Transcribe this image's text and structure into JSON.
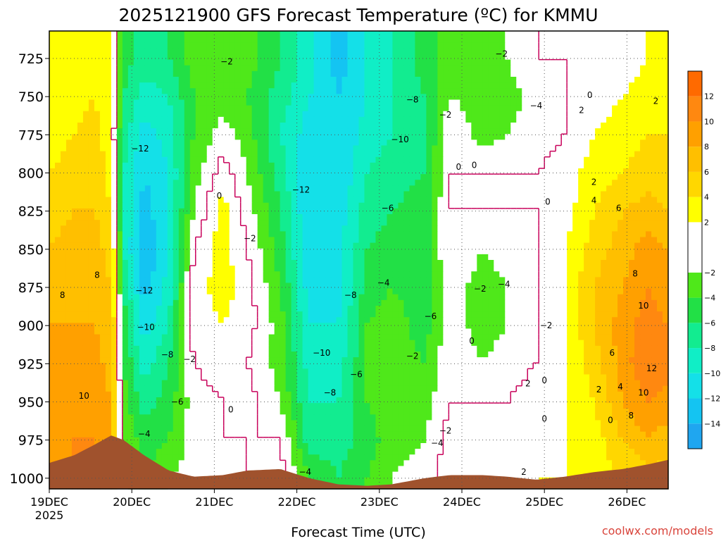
{
  "chart_data": {
    "type": "heatmap",
    "title": "2025121900 GFS Forecast Temperature (ºC) for KMMU",
    "xlabel": "Forecast Time (UTC)",
    "ylabel": "",
    "credit": "coolwx.com/models",
    "x_ticks": [
      "19DEC",
      "20DEC",
      "21DEC",
      "22DEC",
      "23DEC",
      "24DEC",
      "25DEC",
      "26DEC"
    ],
    "x_year": "2025",
    "xlim_days": [
      0,
      7.5
    ],
    "y_ticks": [
      725,
      750,
      775,
      800,
      825,
      850,
      875,
      900,
      925,
      950,
      975,
      1000
    ],
    "ylim_hPa": [
      707,
      1007
    ],
    "grid": true,
    "colorbar": {
      "ticks": [
        -14,
        -12,
        -10,
        -8,
        -6,
        -4,
        -2,
        2,
        4,
        6,
        8,
        10,
        12
      ],
      "bins": [
        {
          "min": -16,
          "max": -14,
          "color": "#1fa6f0"
        },
        {
          "min": -14,
          "max": -12,
          "color": "#14c4f2"
        },
        {
          "min": -12,
          "max": -10,
          "color": "#14e0e8"
        },
        {
          "min": -10,
          "max": -8,
          "color": "#10eec6"
        },
        {
          "min": -8,
          "max": -6,
          "color": "#12ec90"
        },
        {
          "min": -6,
          "max": -4,
          "color": "#22e046"
        },
        {
          "min": -4,
          "max": -2,
          "color": "#4fe81a"
        },
        {
          "min": -2,
          "max": 2,
          "color": "#ffffff"
        },
        {
          "min": 2,
          "max": 4,
          "color": "#ffff00"
        },
        {
          "min": 4,
          "max": 6,
          "color": "#ffd700"
        },
        {
          "min": 6,
          "max": 8,
          "color": "#ffbf00"
        },
        {
          "min": 8,
          "max": 10,
          "color": "#ffa000"
        },
        {
          "min": 10,
          "max": 12,
          "color": "#ff8810"
        },
        {
          "min": 12,
          "max": 14,
          "color": "#ff6a00"
        }
      ]
    },
    "terrain_color": "#a0522d",
    "freezing_contour_color": "#c8005a",
    "columns": [
      {
        "t": 0.0,
        "sfc": 990,
        "temps": [
          3,
          3,
          3,
          4,
          5,
          6,
          7,
          8,
          8,
          9,
          9,
          9
        ]
      },
      {
        "t": 0.3,
        "sfc": 985,
        "temps": [
          3,
          3,
          4,
          5,
          6,
          7,
          7,
          8,
          9,
          9,
          10,
          10
        ]
      },
      {
        "t": 0.55,
        "sfc": 978,
        "temps": [
          4,
          4,
          5,
          6,
          6,
          7,
          8,
          8,
          9,
          10,
          10,
          10
        ]
      },
      {
        "t": 0.75,
        "sfc": 972,
        "temps": [
          3,
          2,
          2,
          3,
          4,
          5,
          6,
          7,
          7,
          8,
          8,
          8
        ]
      },
      {
        "t": 0.9,
        "sfc": 975,
        "temps": [
          -5,
          -6,
          -7,
          -8,
          -8,
          -8,
          -6,
          -5,
          -4,
          -3,
          -2,
          -1
        ]
      },
      {
        "t": 1.15,
        "sfc": 985,
        "temps": [
          -7,
          -9,
          -11,
          -12,
          -13,
          -14,
          -13,
          -11,
          -9,
          -7,
          -5,
          -4
        ]
      },
      {
        "t": 1.45,
        "sfc": 995,
        "temps": [
          -6,
          -8,
          -9,
          -10,
          -10,
          -10,
          -9,
          -8,
          -6,
          -5,
          -4,
          -2
        ]
      },
      {
        "t": 1.75,
        "sfc": 999,
        "temps": [
          -3,
          -4,
          -4,
          -3,
          -2,
          0,
          1,
          1,
          0,
          -1,
          -1,
          -1
        ]
      },
      {
        "t": 2.1,
        "sfc": 998,
        "temps": [
          -2,
          -3,
          -1,
          1,
          3,
          3,
          3,
          2,
          1,
          0,
          0,
          -1
        ]
      },
      {
        "t": 2.4,
        "sfc": 995,
        "temps": [
          -3,
          -4,
          -3,
          -2,
          -1,
          0,
          1,
          1,
          0,
          1,
          0,
          0
        ]
      },
      {
        "t": 2.8,
        "sfc": 994,
        "temps": [
          -6,
          -7,
          -8,
          -7,
          -6,
          -5,
          -4,
          -3,
          -3,
          -2,
          0,
          1
        ]
      },
      {
        "t": 3.15,
        "sfc": 1000,
        "temps": [
          -9,
          -10,
          -11,
          -12,
          -12,
          -12,
          -11,
          -10,
          -9,
          -8,
          -7,
          -4
        ]
      },
      {
        "t": 3.5,
        "sfc": 1004,
        "temps": [
          -13,
          -12,
          -12,
          -12,
          -11,
          -11,
          -11,
          -10,
          -9,
          -8,
          -7,
          -6
        ]
      },
      {
        "t": 3.85,
        "sfc": 1005,
        "temps": [
          -10,
          -10,
          -9,
          -8,
          -7,
          -6,
          -5,
          -4,
          -4,
          -4,
          -5,
          -4
        ]
      },
      {
        "t": 4.15,
        "sfc": 1004,
        "temps": [
          -8,
          -8,
          -8,
          -7,
          -6,
          -5,
          -4,
          -3,
          -3,
          -3,
          -3,
          -2
        ]
      },
      {
        "t": 4.55,
        "sfc": 1000,
        "temps": [
          -5,
          -6,
          -7,
          -6,
          -5,
          -5,
          -5,
          -5,
          -4,
          -3,
          -2,
          -1
        ]
      },
      {
        "t": 4.85,
        "sfc": 998,
        "temps": [
          -3,
          -2,
          0,
          0,
          0,
          0,
          -1,
          -1,
          0,
          0,
          1,
          1
        ]
      },
      {
        "t": 5.25,
        "sfc": 998,
        "temps": [
          -3,
          -3,
          -3,
          0,
          0,
          -2,
          -3,
          -3,
          -2,
          0,
          1,
          2
        ]
      },
      {
        "t": 5.55,
        "sfc": 999,
        "temps": [
          -2,
          -3,
          -2,
          0,
          0,
          -1,
          -2,
          -2,
          -1,
          0,
          1,
          1
        ]
      },
      {
        "t": 5.9,
        "sfc": 1001,
        "temps": [
          0,
          -1,
          -1,
          0,
          0,
          0,
          0,
          0,
          0,
          1,
          1,
          2
        ]
      },
      {
        "t": 6.25,
        "sfc": 999,
        "temps": [
          0,
          0,
          0,
          1,
          1,
          2,
          2,
          2,
          2,
          2,
          2,
          2
        ]
      },
      {
        "t": 6.6,
        "sfc": 996,
        "temps": [
          1,
          1,
          2,
          3,
          4,
          5,
          6,
          6,
          5,
          4,
          3,
          3
        ]
      },
      {
        "t": 6.95,
        "sfc": 994,
        "temps": [
          1,
          2,
          3,
          4,
          6,
          7,
          8,
          9,
          9,
          8,
          6,
          4
        ]
      },
      {
        "t": 7.25,
        "sfc": 991,
        "temps": [
          2,
          3,
          4,
          5,
          7,
          9,
          10,
          11,
          12,
          10,
          8,
          5
        ]
      },
      {
        "t": 7.5,
        "sfc": 988,
        "temps": [
          2,
          3,
          4,
          5,
          6,
          8,
          9,
          10,
          11,
          9,
          7,
          5
        ]
      }
    ],
    "contour_labels": [
      {
        "t": 0.16,
        "p": 880,
        "v": "8"
      },
      {
        "t": 0.58,
        "p": 867,
        "v": "8"
      },
      {
        "t": 0.42,
        "p": 946,
        "v": "10"
      },
      {
        "t": 1.1,
        "p": 784,
        "v": "−12"
      },
      {
        "t": 1.15,
        "p": 877,
        "v": "−12"
      },
      {
        "t": 1.17,
        "p": 901,
        "v": "−10"
      },
      {
        "t": 1.43,
        "p": 919,
        "v": "−8"
      },
      {
        "t": 1.55,
        "p": 950,
        "v": "−6"
      },
      {
        "t": 1.15,
        "p": 971,
        "v": "−4"
      },
      {
        "t": 1.7,
        "p": 922,
        "v": "−2"
      },
      {
        "t": 2.06,
        "p": 815,
        "v": "0"
      },
      {
        "t": 2.43,
        "p": 843,
        "v": "−2"
      },
      {
        "t": 2.15,
        "p": 727,
        "v": "−2"
      },
      {
        "t": 2.2,
        "p": 955,
        "v": "0"
      },
      {
        "t": 3.05,
        "p": 811,
        "v": "−12"
      },
      {
        "t": 3.1,
        "p": 996,
        "v": "−4"
      },
      {
        "t": 3.3,
        "p": 918,
        "v": "−10"
      },
      {
        "t": 3.4,
        "p": 944,
        "v": "−8"
      },
      {
        "t": 3.65,
        "p": 880,
        "v": "−8"
      },
      {
        "t": 3.72,
        "p": 932,
        "v": "−6"
      },
      {
        "t": 4.1,
        "p": 823,
        "v": "−6"
      },
      {
        "t": 4.05,
        "p": 872,
        "v": "−4"
      },
      {
        "t": 4.25,
        "p": 778,
        "v": "−10"
      },
      {
        "t": 4.4,
        "p": 752,
        "v": "−8"
      },
      {
        "t": 4.4,
        "p": 920,
        "v": "−2"
      },
      {
        "t": 4.62,
        "p": 894,
        "v": "−6"
      },
      {
        "t": 4.8,
        "p": 762,
        "v": "−2"
      },
      {
        "t": 4.8,
        "p": 969,
        "v": "−2"
      },
      {
        "t": 4.7,
        "p": 977,
        "v": "−4"
      },
      {
        "t": 4.96,
        "p": 796,
        "v": "0"
      },
      {
        "t": 5.15,
        "p": 795,
        "v": "0"
      },
      {
        "t": 5.12,
        "p": 910,
        "v": "0"
      },
      {
        "t": 5.22,
        "p": 876,
        "v": "−2"
      },
      {
        "t": 5.51,
        "p": 873,
        "v": "−4"
      },
      {
        "t": 5.48,
        "p": 722,
        "v": "−2"
      },
      {
        "t": 5.9,
        "p": 756,
        "v": "−4"
      },
      {
        "t": 6.02,
        "p": 900,
        "v": "−2"
      },
      {
        "t": 6.04,
        "p": 819,
        "v": "0"
      },
      {
        "t": 5.8,
        "p": 938,
        "v": "2"
      },
      {
        "t": 6.0,
        "p": 936,
        "v": "0"
      },
      {
        "t": 5.75,
        "p": 996,
        "v": "2"
      },
      {
        "t": 6.0,
        "p": 961,
        "v": "0"
      },
      {
        "t": 6.45,
        "p": 759,
        "v": "2"
      },
      {
        "t": 6.55,
        "p": 749,
        "v": "0"
      },
      {
        "t": 6.6,
        "p": 806,
        "v": "2"
      },
      {
        "t": 6.6,
        "p": 818,
        "v": "4"
      },
      {
        "t": 6.8,
        "p": 962,
        "v": "0"
      },
      {
        "t": 6.9,
        "p": 823,
        "v": "6"
      },
      {
        "t": 6.82,
        "p": 918,
        "v": "6"
      },
      {
        "t": 6.92,
        "p": 940,
        "v": "4"
      },
      {
        "t": 6.66,
        "p": 942,
        "v": "2"
      },
      {
        "t": 7.05,
        "p": 959,
        "v": "8"
      },
      {
        "t": 7.1,
        "p": 866,
        "v": "8"
      },
      {
        "t": 7.2,
        "p": 887,
        "v": "10"
      },
      {
        "t": 7.2,
        "p": 944,
        "v": "10"
      },
      {
        "t": 7.3,
        "p": 928,
        "v": "12"
      },
      {
        "t": 7.35,
        "p": 753,
        "v": "2"
      }
    ]
  }
}
